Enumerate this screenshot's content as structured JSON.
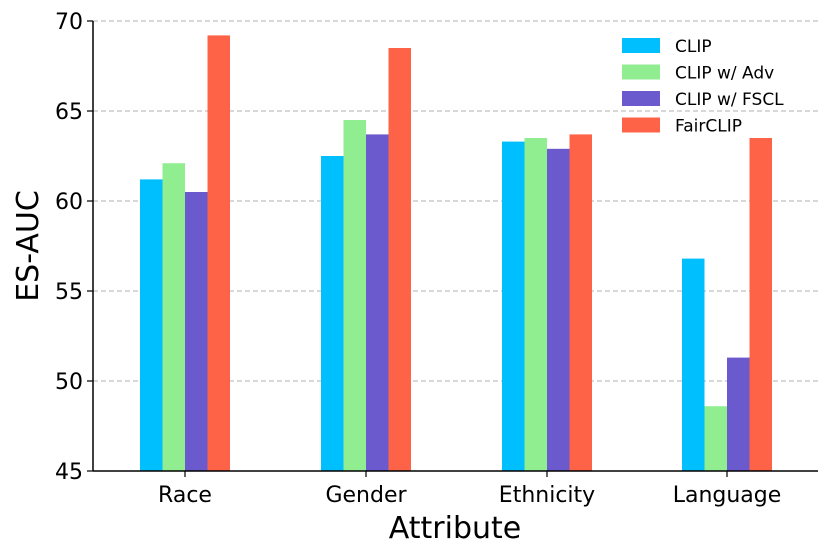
{
  "chart_data": {
    "type": "bar",
    "title": "",
    "xlabel": "Attribute",
    "ylabel": "ES-AUC",
    "ylim": [
      45,
      70
    ],
    "yticks": [
      45,
      50,
      55,
      60,
      65,
      70
    ],
    "grid": "horizontal-dashed",
    "legend_position": "top-right",
    "categories": [
      "Race",
      "Gender",
      "Ethnicity",
      "Language"
    ],
    "series": [
      {
        "name": "CLIP",
        "color": "#00bfff",
        "values": [
          61.2,
          62.5,
          63.3,
          56.8
        ]
      },
      {
        "name": "CLIP w/ Adv",
        "color": "#90ee90",
        "values": [
          62.1,
          64.5,
          63.5,
          48.6
        ]
      },
      {
        "name": "CLIP w/ FSCL",
        "color": "#6a5acd",
        "values": [
          60.5,
          63.7,
          62.9,
          51.3
        ]
      },
      {
        "name": "FairCLIP",
        "color": "#ff6347",
        "values": [
          69.2,
          68.5,
          63.7,
          63.5
        ]
      }
    ]
  }
}
